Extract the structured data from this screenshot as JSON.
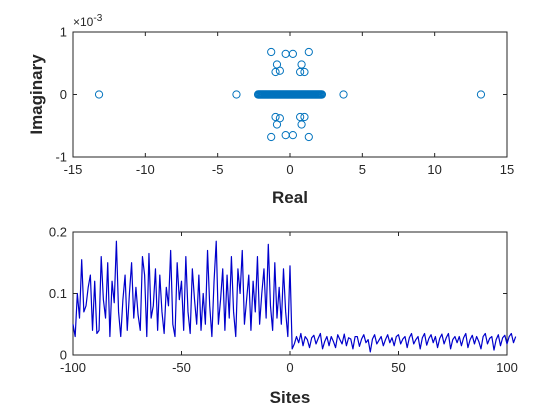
{
  "chart_data": [
    {
      "type": "scatter",
      "title": "",
      "xlabel": "Real",
      "ylabel": "Imaginary",
      "xlim": [
        -15,
        15
      ],
      "ylim": [
        -1,
        1
      ],
      "y_scale_factor_label": "×10",
      "y_scale_exponent": "-3",
      "xticks": [
        "-15",
        "-10",
        "-5",
        "0",
        "5",
        "10",
        "15"
      ],
      "yticks": [
        "-1",
        "0",
        "1"
      ],
      "grid": false,
      "box": true,
      "marker": "open-circle",
      "color": "#0072BD",
      "points": [
        {
          "x": -13.2,
          "y": 0.0
        },
        {
          "x": -3.7,
          "y": 0.0
        },
        {
          "x": 3.7,
          "y": 0.0
        },
        {
          "x": 13.2,
          "y": 0.0
        },
        {
          "x": -1.3,
          "y": 0.68
        },
        {
          "x": 1.3,
          "y": 0.68
        },
        {
          "x": -1.3,
          "y": -0.68
        },
        {
          "x": 1.3,
          "y": -0.68
        },
        {
          "x": -0.3,
          "y": 0.65
        },
        {
          "x": 0.2,
          "y": 0.65
        },
        {
          "x": -0.3,
          "y": -0.65
        },
        {
          "x": 0.2,
          "y": -0.65
        },
        {
          "x": -0.9,
          "y": 0.48
        },
        {
          "x": 0.8,
          "y": 0.48
        },
        {
          "x": -0.9,
          "y": -0.48
        },
        {
          "x": 0.8,
          "y": -0.48
        },
        {
          "x": -1.0,
          "y": 0.36
        },
        {
          "x": -0.7,
          "y": 0.38
        },
        {
          "x": 0.7,
          "y": 0.36
        },
        {
          "x": 1.0,
          "y": 0.36
        },
        {
          "x": -1.0,
          "y": -0.36
        },
        {
          "x": -0.7,
          "y": -0.38
        },
        {
          "x": 0.7,
          "y": -0.36
        },
        {
          "x": 1.0,
          "y": -0.36
        }
      ],
      "dense_band": {
        "x_from": -2.2,
        "x_to": 2.2,
        "y": 0.0,
        "count": 60
      }
    },
    {
      "type": "line",
      "title": "",
      "xlabel": "Sites",
      "ylabel": "",
      "xlim": [
        -100,
        100
      ],
      "ylim": [
        0,
        0.2
      ],
      "xticks": [
        "-100",
        "-50",
        "0",
        "50",
        "100"
      ],
      "yticks": [
        "0",
        "0.1",
        "0.2"
      ],
      "grid": false,
      "box": true,
      "color": "#0000CC",
      "series": [
        {
          "x_start": -100,
          "x_step": 1,
          "values": [
            0.05,
            0.03,
            0.1,
            0.06,
            0.155,
            0.07,
            0.08,
            0.11,
            0.13,
            0.04,
            0.12,
            0.035,
            0.04,
            0.16,
            0.09,
            0.06,
            0.15,
            0.03,
            0.12,
            0.085,
            0.185,
            0.07,
            0.03,
            0.09,
            0.13,
            0.04,
            0.1,
            0.15,
            0.06,
            0.11,
            0.065,
            0.04,
            0.16,
            0.13,
            0.03,
            0.165,
            0.06,
            0.08,
            0.14,
            0.04,
            0.13,
            0.07,
            0.035,
            0.11,
            0.08,
            0.17,
            0.05,
            0.03,
            0.15,
            0.09,
            0.12,
            0.04,
            0.16,
            0.07,
            0.035,
            0.14,
            0.09,
            0.05,
            0.13,
            0.04,
            0.1,
            0.05,
            0.17,
            0.08,
            0.03,
            0.12,
            0.185,
            0.05,
            0.09,
            0.14,
            0.04,
            0.13,
            0.06,
            0.16,
            0.07,
            0.03,
            0.14,
            0.1,
            0.17,
            0.05,
            0.09,
            0.13,
            0.04,
            0.12,
            0.07,
            0.16,
            0.05,
            0.1,
            0.14,
            0.06,
            0.18,
            0.08,
            0.04,
            0.15,
            0.06,
            0.11,
            0.05,
            0.14,
            0.07,
            0.03,
            0.145,
            0.01,
            0.018,
            0.03,
            0.02,
            0.035,
            0.015,
            0.03,
            0.025,
            0.012,
            0.028,
            0.032,
            0.018,
            0.027,
            0.035,
            0.01,
            0.022,
            0.03,
            0.015,
            0.03,
            0.022,
            0.012,
            0.033,
            0.025,
            0.018,
            0.034,
            0.015,
            0.028,
            0.026,
            0.01,
            0.03,
            0.03,
            0.014,
            0.026,
            0.033,
            0.02,
            0.025,
            0.005,
            0.026,
            0.033,
            0.018,
            0.024,
            0.03,
            0.015,
            0.025,
            0.033,
            0.02,
            0.028,
            0.015,
            0.03,
            0.033,
            0.018,
            0.026,
            0.03,
            0.012,
            0.028,
            0.035,
            0.018,
            0.025,
            0.03,
            0.01,
            0.028,
            0.035,
            0.016,
            0.027,
            0.033,
            0.02,
            0.03,
            0.012,
            0.027,
            0.034,
            0.018,
            0.028,
            0.035,
            0.01,
            0.025,
            0.03,
            0.02,
            0.03,
            0.015,
            0.028,
            0.035,
            0.012,
            0.025,
            0.032,
            0.018,
            0.03,
            0.022,
            0.01,
            0.03,
            0.035,
            0.018,
            0.027,
            0.03,
            0.008,
            0.025,
            0.033,
            0.015,
            0.028,
            0.032,
            0.018,
            0.03,
            0.035,
            0.02,
            0.03
          ]
        }
      ]
    }
  ]
}
